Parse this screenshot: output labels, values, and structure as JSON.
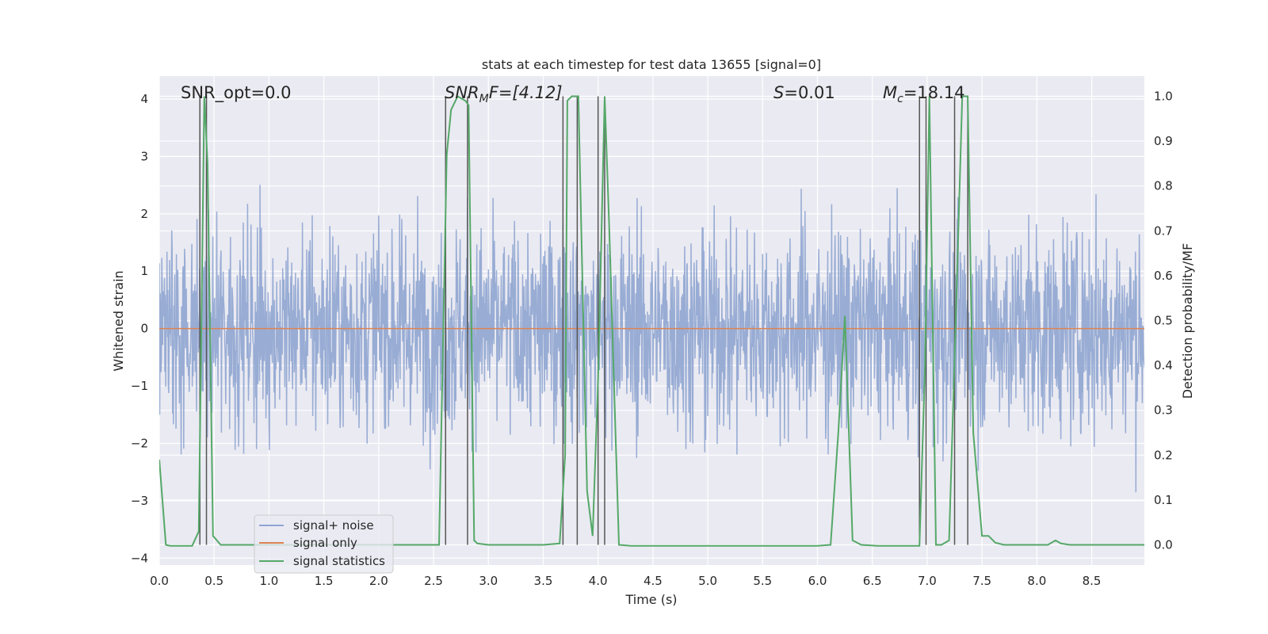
{
  "chart_data": {
    "type": "line",
    "title": "stats at each timestep for test data 13655 [signal=0]",
    "xlabel": "Time (s)",
    "ylabel_left": "Whitened strain",
    "ylabel_right": "Detection probability/MF",
    "xlim": [
      0.0,
      8.98
    ],
    "ylim_left": [
      -4.12,
      4.4
    ],
    "ylim_right": [
      -0.045,
      1.045
    ],
    "x_ticks": [
      0.0,
      0.5,
      1.0,
      1.5,
      2.0,
      2.5,
      3.0,
      3.5,
      4.0,
      4.5,
      5.0,
      5.5,
      6.0,
      6.5,
      7.0,
      7.5,
      8.0,
      8.5
    ],
    "x_tick_labels": [
      "0.0",
      "0.5",
      "1.0",
      "1.5",
      "2.0",
      "2.5",
      "3.0",
      "3.5",
      "4.0",
      "4.5",
      "5.0",
      "5.5",
      "6.0",
      "6.5",
      "7.0",
      "7.5",
      "8.0",
      "8.5"
    ],
    "y_left_ticks": [
      4,
      3,
      2,
      1,
      0,
      -1,
      -2,
      -3,
      -4
    ],
    "y_left_tick_labels": [
      "4",
      "3",
      "2",
      "1",
      "0",
      "−1",
      "−2",
      "−3",
      "−4"
    ],
    "y_right_ticks": [
      1.0,
      0.9,
      0.8,
      0.7,
      0.6,
      0.5,
      0.4,
      0.3,
      0.2,
      0.1,
      0.0
    ],
    "y_right_tick_labels": [
      "1.0",
      "0.9",
      "0.8",
      "0.7",
      "0.6",
      "0.5",
      "0.4",
      "0.3",
      "0.2",
      "0.1",
      "0.0"
    ],
    "annotations": {
      "snr_opt": "SNR_opt=0.0",
      "snr_mf_main": "SNR",
      "snr_mf_sub": "M",
      "snr_mf_rest": "F=[4.12]",
      "s_main": "S",
      "s_rest": "=0.01",
      "mc_main": "M",
      "mc_sub": "c",
      "mc_rest": "=18.14"
    },
    "legend": {
      "placement": "lower-left",
      "entries": [
        "signal+ noise",
        "signal only",
        "signal statistics"
      ]
    },
    "series": [
      {
        "name": "signal+ noise",
        "axis": "left",
        "kind": "noise",
        "sample_rate": 256,
        "approx_std": 0.9,
        "approx_range": [
          -3.5,
          4.0
        ],
        "color": "#8fa5d0"
      },
      {
        "name": "signal only",
        "axis": "left",
        "x": [
          0.0,
          8.98
        ],
        "y": [
          0.0,
          0.0
        ],
        "color": "#dd8452"
      },
      {
        "name": "signal statistics",
        "axis": "right",
        "color": "#55a868",
        "x": [
          0.0,
          0.06,
          0.1,
          0.2,
          0.3,
          0.36,
          0.41,
          0.44,
          0.49,
          0.56,
          0.7,
          1.0,
          1.5,
          2.0,
          2.5,
          2.55,
          2.62,
          2.66,
          2.72,
          2.79,
          2.82,
          2.87,
          2.9,
          3.0,
          3.5,
          3.65,
          3.7,
          3.72,
          3.76,
          3.82,
          3.9,
          3.95,
          4.0,
          4.06,
          4.1,
          4.19,
          4.3,
          4.5,
          5.0,
          5.5,
          6.0,
          6.12,
          6.19,
          6.25,
          6.32,
          6.4,
          6.55,
          6.93,
          6.98,
          7.02,
          7.08,
          7.13,
          7.2,
          7.27,
          7.32,
          7.37,
          7.42,
          7.5,
          7.56,
          7.62,
          7.7,
          7.9,
          8.0,
          8.1,
          8.17,
          8.22,
          8.3,
          8.5,
          8.98
        ],
        "y": [
          0.19,
          0.0,
          -0.002,
          -0.002,
          -0.002,
          0.03,
          1.0,
          0.85,
          0.02,
          0.0,
          0.0,
          0.0,
          0.0,
          0.0,
          0.0,
          0.0,
          0.87,
          0.97,
          1.0,
          0.99,
          0.98,
          0.01,
          0.003,
          0.0,
          0.0,
          0.003,
          0.2,
          0.99,
          1.0,
          1.0,
          0.12,
          0.02,
          0.37,
          1.0,
          0.72,
          0.0,
          -0.002,
          -0.002,
          -0.002,
          -0.002,
          -0.002,
          0.0,
          0.25,
          0.51,
          0.01,
          0.0,
          -0.002,
          -0.002,
          0.4,
          1.0,
          0.0,
          0.0,
          0.01,
          0.58,
          1.0,
          1.0,
          0.25,
          0.02,
          0.02,
          0.005,
          0.0,
          0.0,
          0.0,
          0.0,
          0.01,
          0.003,
          0.0,
          0.0,
          0.0
        ]
      }
    ],
    "vertical_markers": [
      0.37,
      0.43,
      2.61,
      2.81,
      3.68,
      3.81,
      4.0,
      4.06,
      6.93,
      6.99,
      7.25,
      7.37
    ]
  }
}
